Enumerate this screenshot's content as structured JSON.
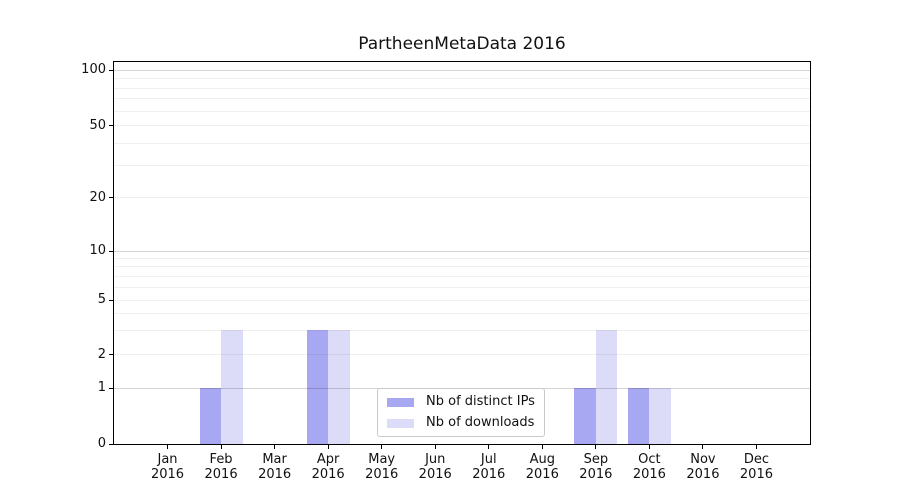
{
  "chart_data": {
    "type": "bar",
    "title": "PartheenMetaData 2016",
    "x_months": [
      "Jan",
      "Feb",
      "Mar",
      "Apr",
      "May",
      "Jun",
      "Jul",
      "Aug",
      "Sep",
      "Oct",
      "Nov",
      "Dec"
    ],
    "x_year": "2016",
    "series": [
      {
        "name": "Nb of distinct IPs",
        "color": "#a8a8f2",
        "values": [
          0,
          1,
          0,
          3,
          0,
          0,
          0,
          0,
          1,
          1,
          0,
          0
        ]
      },
      {
        "name": "Nb of downloads",
        "color": "#dcdcf8",
        "values": [
          0,
          3,
          0,
          3,
          0,
          0,
          0,
          0,
          3,
          1,
          0,
          0
        ]
      }
    ],
    "y_axis": {
      "scale": "symlog",
      "tick_labels": [
        0,
        1,
        2,
        5,
        10,
        20,
        50,
        100
      ],
      "major_gridlines": [
        1,
        10,
        100
      ],
      "minor_gridlines": [
        2,
        3,
        4,
        5,
        6,
        7,
        8,
        9,
        20,
        30,
        40,
        50,
        60,
        70,
        80,
        90
      ]
    },
    "legend": {
      "entries": [
        "Nb of distinct IPs",
        "Nb of downloads"
      ],
      "position": "lower center"
    },
    "grid": true
  },
  "style": {
    "major_grid_color": "rgba(0, 0, 0, 0.17)",
    "minor_grid_color": "rgba(0, 0, 0, 0.06)",
    "axis_color": "#000000",
    "text_color": "#111111",
    "background": "#ffffff"
  }
}
